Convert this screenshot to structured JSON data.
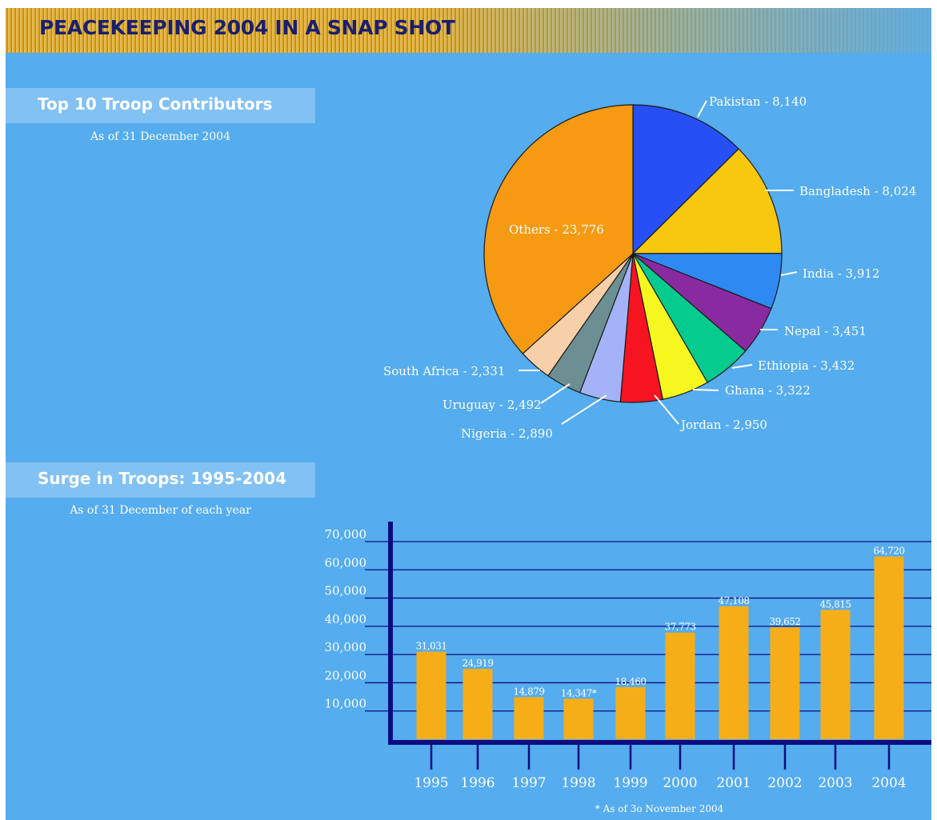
{
  "banner": {
    "title": "PEACEKEEPING 2004 IN A SNAP SHOT"
  },
  "sections": {
    "top10": {
      "title": "Top 10 Troop Contributors",
      "subtitle": "As of 31 December 2004"
    },
    "surge": {
      "title": "Surge in Troops: 1995-2004",
      "subtitle": "As of 31 December of each year"
    }
  },
  "colors": {
    "background": "#55acee",
    "bar": "#f5ae17",
    "axis": "#0d0d80",
    "banner_text": "#1a1f6e"
  },
  "chart_data": [
    {
      "type": "pie",
      "title": "Top 10 Troop Contributors",
      "subtitle": "As of 31 December 2004",
      "start_angle_deg": 0,
      "direction": "clockwise",
      "slices": [
        {
          "label": "Pakistan - 8,140",
          "name": "Pakistan",
          "value": 8140,
          "color": "#2650f5"
        },
        {
          "label": "Bangladesh - 8,024",
          "name": "Bangladesh",
          "value": 8024,
          "color": "#f7c80f"
        },
        {
          "label": "India - 3,912",
          "name": "India",
          "value": 3912,
          "color": "#2e8af2"
        },
        {
          "label": "Nepal - 3,451",
          "name": "Nepal",
          "value": 3451,
          "color": "#8a2aa0"
        },
        {
          "label": "Ethiopia - 3,432",
          "name": "Ethiopia",
          "value": 3432,
          "color": "#05cc8e"
        },
        {
          "label": "Ghana - 3,322",
          "name": "Ghana",
          "value": 3322,
          "color": "#f5f71e"
        },
        {
          "label": "Jordan - 2,950",
          "name": "Jordan",
          "value": 2950,
          "color": "#f5141f"
        },
        {
          "label": "Nigeria - 2,890",
          "name": "Nigeria",
          "value": 2890,
          "color": "#a4b3f7"
        },
        {
          "label": "Uruguay - 2,492",
          "name": "Uruguay",
          "value": 2492,
          "color": "#6c8f93"
        },
        {
          "label": "South Africa - 2,331",
          "name": "South Africa",
          "value": 2331,
          "color": "#f7cfa9"
        },
        {
          "label": "Others - 23,776",
          "name": "Others",
          "value": 23776,
          "color": "#f59a12"
        }
      ]
    },
    {
      "type": "bar",
      "title": "Surge in Troops: 1995-2004",
      "subtitle": "As of 31 December of each year",
      "categories": [
        "1995",
        "1996",
        "1997",
        "1998",
        "1999",
        "2000",
        "2001",
        "2002",
        "2003",
        "2004"
      ],
      "values": [
        31031,
        24919,
        14879,
        14347,
        18460,
        37773,
        47108,
        39652,
        45815,
        64720
      ],
      "value_labels": [
        "31,031",
        "24,919",
        "14,879",
        "14,347*",
        "18,460",
        "37,773",
        "47,108",
        "39,652",
        "45,815",
        "64,720"
      ],
      "yticks": [
        "10,000",
        "20,000",
        "30,000",
        "40,000",
        "50,000",
        "60,000",
        "70,000"
      ],
      "ytick_values": [
        10000,
        20000,
        30000,
        40000,
        50000,
        60000,
        70000
      ],
      "ylim": [
        0,
        70000
      ],
      "grid": true,
      "footnote": "* As of 3o November 2004"
    }
  ]
}
